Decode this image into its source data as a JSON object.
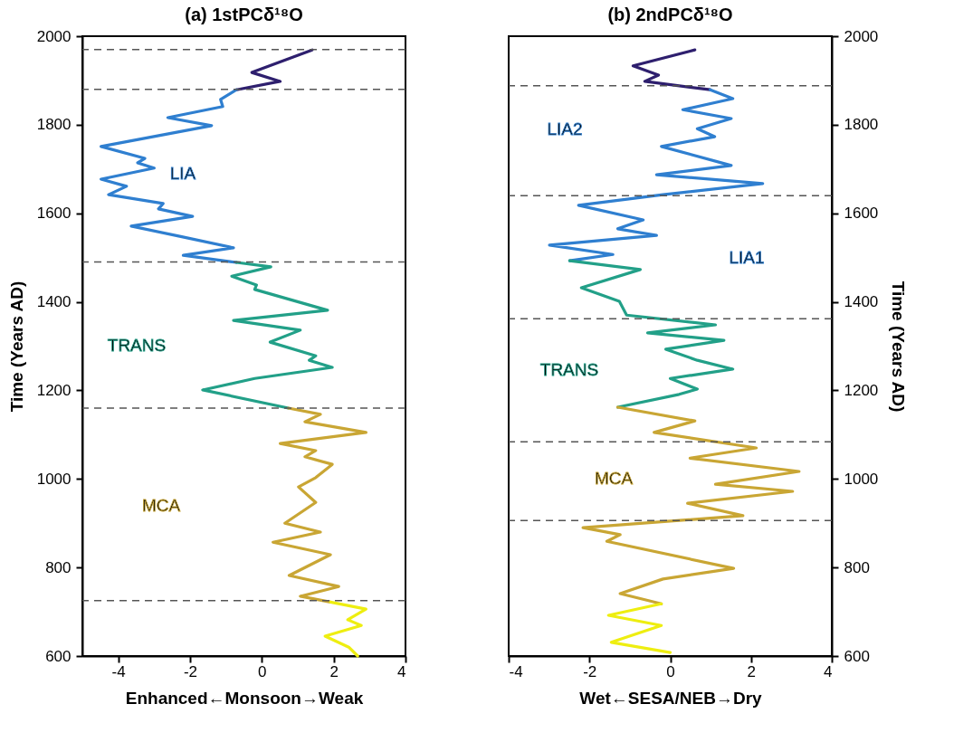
{
  "chart_data": [
    {
      "type": "line",
      "title": "(a) 1stPCδ¹⁸O",
      "xlabel": "Enhanced←Monsoon→Weak",
      "ylabel": "Time (Years AD)",
      "xlim": [
        -5,
        4
      ],
      "xticks": [
        -4,
        -2,
        0,
        2,
        4
      ],
      "ylim": [
        600,
        2000
      ],
      "yticks": [
        600,
        800,
        1000,
        1200,
        1400,
        1600,
        1800,
        2000
      ],
      "grid": false,
      "legend": false,
      "line_style": "solid",
      "marker": "none",
      "series": [
        {
          "color": "#2e1f6e",
          "values": [
            1969,
            1918,
            1898,
            1879
          ],
          "x": [
            1.4,
            -0.28,
            0.51,
            -0.71
          ]
        },
        {
          "color": "#2f7fd0",
          "values": [
            1879,
            1857,
            1841,
            1816,
            1798,
            1751,
            1724,
            1714,
            1702,
            1677,
            1661,
            1642,
            1622,
            1610,
            1593,
            1571,
            1548,
            1522,
            1505,
            1489
          ],
          "x": [
            -0.71,
            -1.15,
            -1.09,
            -2.62,
            -1.4,
            -4.48,
            -3.26,
            -3.46,
            -3.0,
            -4.48,
            -3.77,
            -4.27,
            -2.75,
            -2.88,
            -1.93,
            -3.64,
            -2.29,
            -0.79,
            -2.19,
            -0.71
          ]
        },
        {
          "color": "#22a088",
          "values": [
            1489,
            1479,
            1458,
            1438,
            1428,
            1381,
            1358,
            1336,
            1309,
            1278,
            1268,
            1252,
            1227,
            1201,
            1160
          ],
          "x": [
            -0.71,
            0.25,
            -0.84,
            -0.15,
            -0.2,
            1.83,
            -0.79,
            1.07,
            0.23,
            1.5,
            1.32,
            1.96,
            -0.2,
            -1.65,
            0.74
          ]
        },
        {
          "color": "#c9a634",
          "values": [
            1160,
            1146,
            1129,
            1105,
            1080,
            1064,
            1050,
            1033,
            1003,
            982,
            947,
            900,
            880,
            857,
            829,
            782,
            757,
            735,
            722
          ],
          "x": [
            0.74,
            1.63,
            1.2,
            2.9,
            0.51,
            1.5,
            1.2,
            1.96,
            1.5,
            1.02,
            1.5,
            0.64,
            1.63,
            0.31,
            1.91,
            0.76,
            2.14,
            1.07,
            1.91
          ]
        },
        {
          "color": "#eeee10",
          "values": [
            722,
            706,
            682,
            669,
            645,
            620,
            600
          ],
          "x": [
            1.91,
            2.9,
            2.39,
            2.77,
            1.76,
            2.42,
            2.67
          ]
        }
      ],
      "ref_lines": [
        {
          "axis": "y",
          "value": 1970,
          "color": "#555555",
          "line_style": "dashed"
        },
        {
          "axis": "y",
          "value": 1880,
          "color": "#555555",
          "line_style": "dashed"
        },
        {
          "axis": "y",
          "value": 1490,
          "color": "#555555",
          "line_style": "dashed"
        },
        {
          "axis": "y",
          "value": 1160,
          "color": "#555555",
          "line_style": "dashed"
        },
        {
          "axis": "y",
          "value": 725,
          "color": "#555555",
          "line_style": "dashed"
        }
      ],
      "annotations": [
        "LIA",
        "TRANS",
        "MCA"
      ]
    },
    {
      "type": "line",
      "title": "(b) 2ndPCδ¹⁸O",
      "xlabel": "Wet←SESA/NEB→Dry",
      "y2label": "Time (Years AD)",
      "xlim": [
        -4,
        4
      ],
      "xticks": [
        -4,
        -2,
        0,
        2,
        4
      ],
      "y2lim": [
        600,
        2000
      ],
      "y2ticks": [
        600,
        800,
        1000,
        1200,
        1400,
        1600,
        1800,
        2000
      ],
      "grid": false,
      "legend": false,
      "line_style": "solid",
      "marker": "none",
      "series": [
        {
          "axis": "y2",
          "color": "#2e1f6e",
          "values": [
            1969,
            1933,
            1912,
            1898,
            1879
          ],
          "x": [
            0.61,
            -0.92,
            -0.29,
            -0.63,
            0.99
          ]
        },
        {
          "axis": "y2",
          "color": "#2f7fd0",
          "values": [
            1879,
            1859,
            1834,
            1814,
            1791,
            1773,
            1751,
            1708,
            1687,
            1667,
            1642,
            1618,
            1585,
            1565,
            1550,
            1528,
            1507,
            1493
          ],
          "x": [
            0.99,
            1.55,
            0.31,
            1.51,
            0.67,
            1.1,
            -0.22,
            1.51,
            -0.34,
            2.29,
            -0.18,
            -2.27,
            -0.67,
            -1.3,
            -0.34,
            -2.99,
            -1.42,
            -2.49
          ]
        },
        {
          "axis": "y2",
          "color": "#22a088",
          "values": [
            1493,
            1473,
            1432,
            1401,
            1370,
            1348,
            1330,
            1313,
            1293,
            1268,
            1248,
            1227,
            1203,
            1191,
            1162
          ],
          "x": [
            -2.49,
            -0.74,
            -2.2,
            -1.26,
            -1.08,
            1.12,
            -0.56,
            1.33,
            -0.11,
            0.67,
            1.55,
            0.0,
            0.67,
            0.22,
            -1.3
          ]
        },
        {
          "axis": "y2",
          "color": "#c9a634",
          "values": [
            1162,
            1131,
            1105,
            1070,
            1047,
            1017,
            988,
            972,
            945,
            917,
            890,
            874,
            859,
            798,
            774,
            741,
            718
          ],
          "x": [
            -1.3,
            0.61,
            -0.4,
            2.13,
            0.49,
            3.19,
            1.12,
            3.03,
            0.43,
            1.8,
            -2.16,
            -1.24,
            -1.57,
            1.57,
            -0.18,
            -1.24,
            -0.22
          ]
        },
        {
          "axis": "y2",
          "color": "#eeee10",
          "values": [
            718,
            692,
            669,
            631,
            608
          ],
          "x": [
            -0.22,
            -1.53,
            -0.22,
            -1.46,
            0.0
          ]
        }
      ],
      "ref_lines": [
        {
          "axis": "y2",
          "value": 1888,
          "color": "#555555",
          "line_style": "dashed"
        },
        {
          "axis": "y2",
          "value": 1640,
          "color": "#555555",
          "line_style": "dashed"
        },
        {
          "axis": "y2",
          "value": 1362,
          "color": "#555555",
          "line_style": "dashed"
        },
        {
          "axis": "y2",
          "value": 1084,
          "color": "#555555",
          "line_style": "dashed"
        },
        {
          "axis": "y2",
          "value": 906,
          "color": "#555555",
          "line_style": "dashed"
        }
      ],
      "annotations": [
        "LIA2",
        "LIA1",
        "TRANS",
        "MCA"
      ]
    }
  ]
}
